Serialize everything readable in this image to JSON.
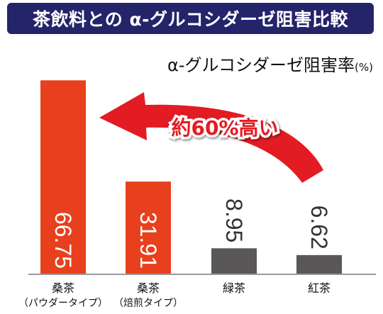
{
  "colors": {
    "banner": "#23246a",
    "bar_highlight": "#e8401c",
    "bar_other": "#595757",
    "arrow": "#e31b23",
    "callout_text": "#e31b23"
  },
  "chart_data": {
    "type": "bar",
    "title": "茶飲料との α-グルコシダーゼ阻害比較",
    "ylabel": "α-グルコシダーゼ阻害率",
    "ylabel_unit": "(%)",
    "categories": [
      {
        "line1": "桑茶",
        "line2": "（パウダータイプ）"
      },
      {
        "line1": "桑茶",
        "line2": "（焙煎タイプ）"
      },
      {
        "line1": "緑茶",
        "line2": ""
      },
      {
        "line1": "紅茶",
        "line2": ""
      }
    ],
    "values": [
      66.75,
      31.91,
      8.95,
      6.62
    ],
    "value_labels": [
      "66.75",
      "31.91",
      "8.95",
      "6.62"
    ],
    "highlighted": [
      true,
      true,
      false,
      false
    ],
    "ylim": [
      0,
      70
    ],
    "grid": false,
    "annotation": "約60%高い"
  }
}
